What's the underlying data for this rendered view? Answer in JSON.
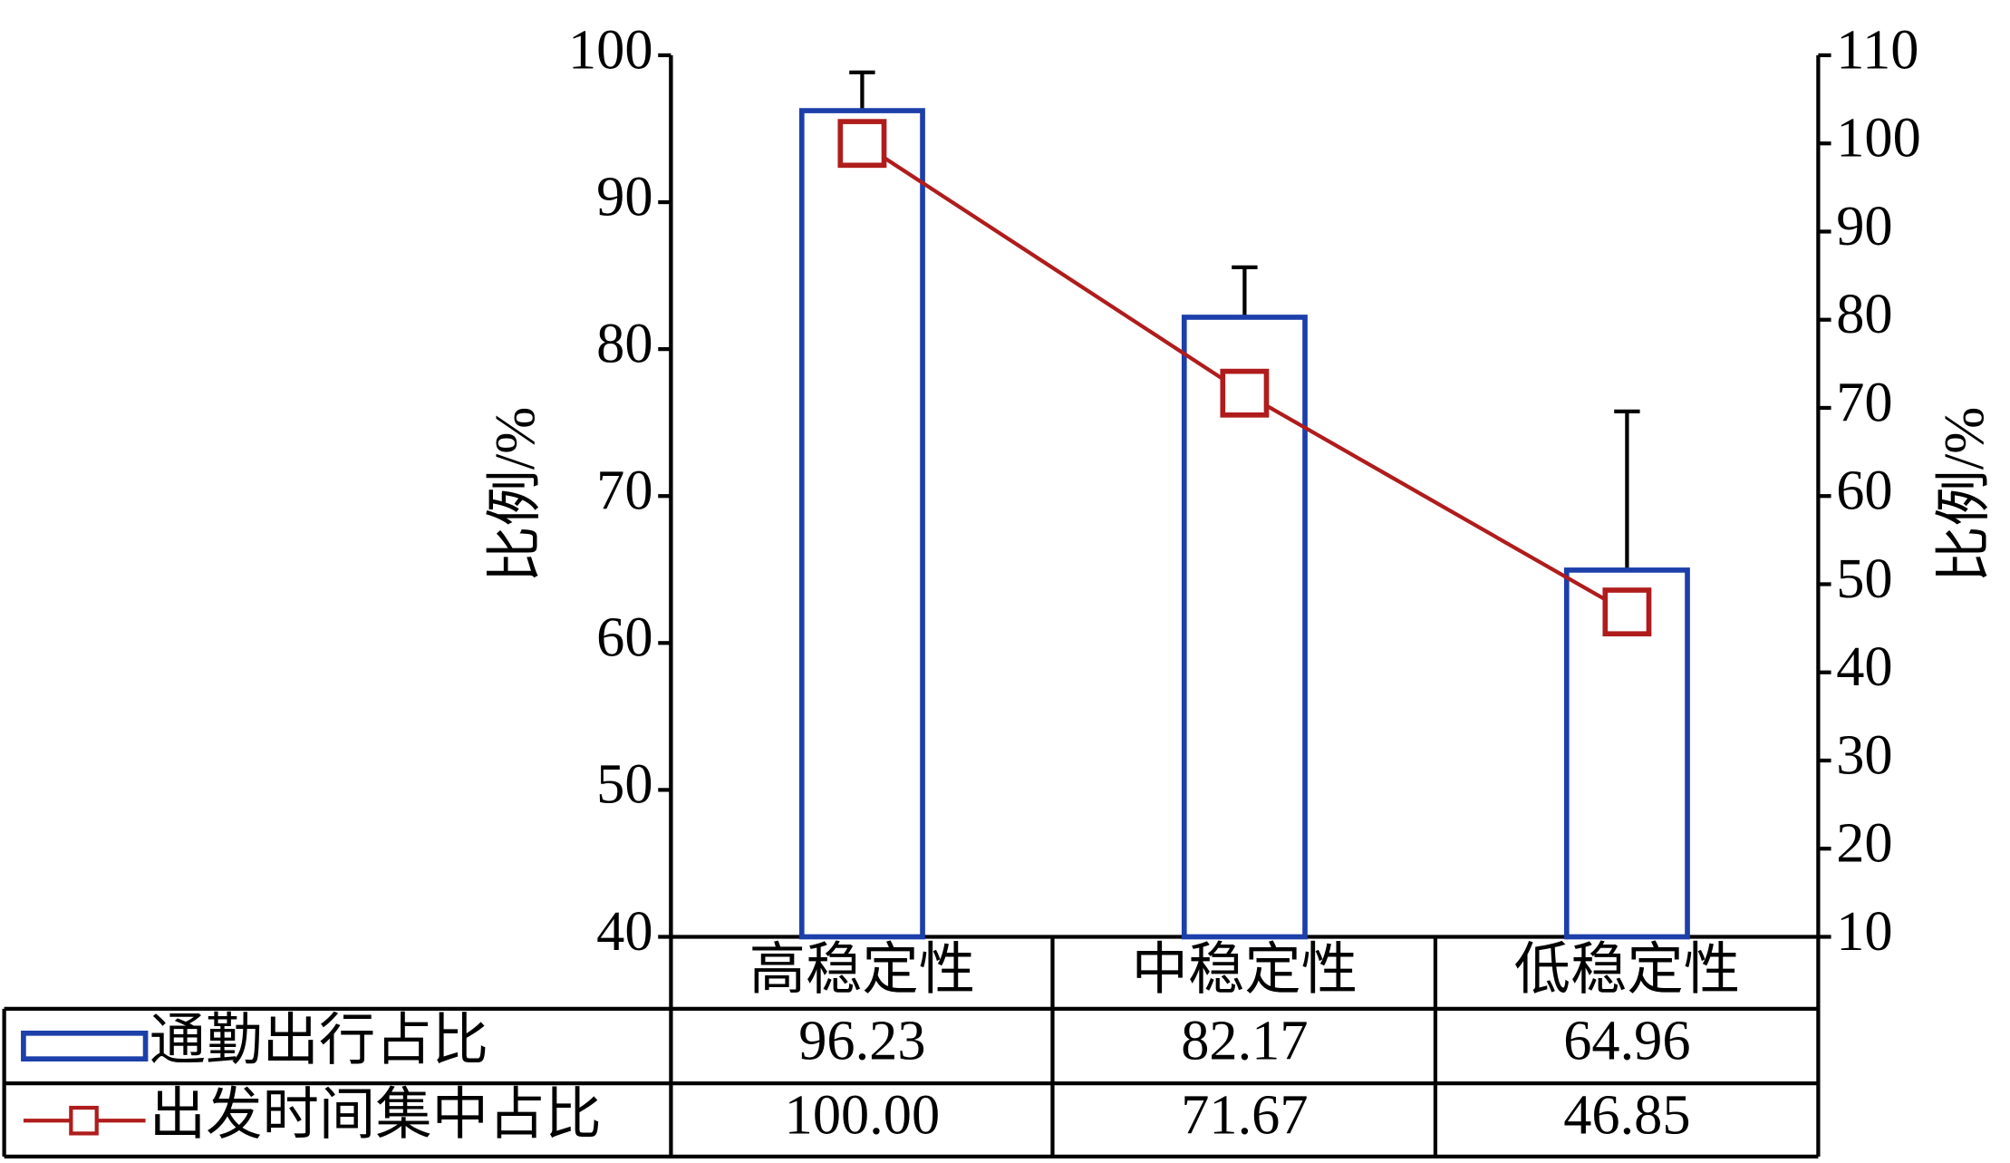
{
  "chart_data": {
    "type": "bar",
    "categories": [
      "高稳定性",
      "中稳定性",
      "低稳定性"
    ],
    "ylabel": "比例/%",
    "y2label": "比例/%",
    "ylim": [
      40,
      100
    ],
    "yticks": [
      40,
      50,
      60,
      70,
      80,
      90,
      100
    ],
    "y2lim": [
      10,
      110
    ],
    "y2ticks": [
      10,
      20,
      30,
      40,
      50,
      60,
      70,
      80,
      90,
      100,
      110
    ],
    "series": [
      {
        "name": "通勤出行占比",
        "type": "bar",
        "color": "#1c3faa",
        "values": [
          96.23,
          82.17,
          64.96
        ],
        "errors": [
          2.6,
          3.4,
          10.8
        ]
      },
      {
        "name": "出发时间集中占比",
        "type": "line",
        "axis": "y2",
        "color": "#b01c1c",
        "values": [
          100,
          71.67,
          46.85
        ],
        "value_labels": [
          "100.00",
          "71.67",
          "46.85"
        ]
      }
    ]
  }
}
